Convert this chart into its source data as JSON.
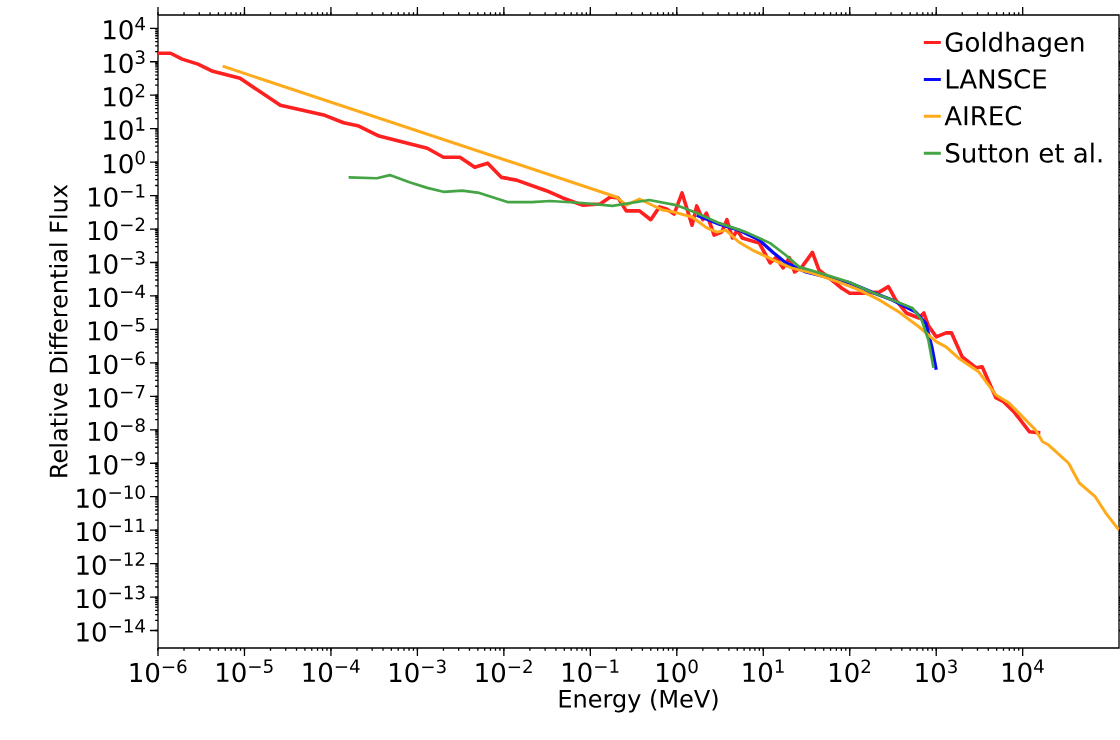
{
  "chart_data": {
    "type": "line",
    "xlabel": "Energy (MeV)",
    "ylabel": "Relative Differential Flux",
    "log": "xy",
    "legend": "top right",
    "xlim": [
      1e-06,
      130000
    ],
    "ylim": [
      3e-15,
      25000
    ],
    "xticks": [
      {
        "value": 1e-06,
        "label": "10$^{−6}$"
      },
      {
        "value": 1e-05,
        "label": "10$^{−5}$"
      },
      {
        "value": 0.0001,
        "label": "10$^{−4}$"
      },
      {
        "value": 0.001,
        "label": "10$^{−3}$"
      },
      {
        "value": 0.01,
        "label": "10$^{−2}$"
      },
      {
        "value": 0.1,
        "label": "10$^{−1}$"
      },
      {
        "value": 1,
        "label": "10$^{0}$"
      },
      {
        "value": 10,
        "label": "10$^{1}$"
      },
      {
        "value": 100,
        "label": "10$^{2}$"
      },
      {
        "value": 1000,
        "label": "10$^{3}$"
      },
      {
        "value": 10000,
        "label": "10$^{4}$"
      }
    ],
    "yticks": [
      {
        "value": 1e-14,
        "label": "10$^{−14}$"
      },
      {
        "value": 1e-13,
        "label": "10$^{−13}$"
      },
      {
        "value": 1e-12,
        "label": "10$^{−12}$"
      },
      {
        "value": 1e-11,
        "label": "10$^{−11}$"
      },
      {
        "value": 1e-10,
        "label": "10$^{−10}$"
      },
      {
        "value": 1e-09,
        "label": "10$^{−9}$"
      },
      {
        "value": 1e-08,
        "label": "10$^{−8}$"
      },
      {
        "value": 1e-07,
        "label": "10$^{−7}$"
      },
      {
        "value": 1e-06,
        "label": "10$^{−6}$"
      },
      {
        "value": 1e-05,
        "label": "10$^{−5}$"
      },
      {
        "value": 0.0001,
        "label": "10$^{−4}$"
      },
      {
        "value": 0.001,
        "label": "10$^{−3}$"
      },
      {
        "value": 0.01,
        "label": "10$^{−2}$"
      },
      {
        "value": 0.1,
        "label": "10$^{−1}$"
      },
      {
        "value": 1,
        "label": "10$^{0}$"
      },
      {
        "value": 10,
        "label": "10$^{1}$"
      },
      {
        "value": 100,
        "label": "10$^{2}$"
      },
      {
        "value": 1000,
        "label": "10$^{3}$"
      },
      {
        "value": 10000,
        "label": "10$^{4}$"
      }
    ],
    "series": [
      {
        "name": "Goldhagen",
        "color": "#ff2020",
        "x": [
          1e-06,
          1.4e-06,
          1.9e-06,
          2.9e-06,
          4.3e-06,
          8.9e-06,
          2.6e-05,
          8.5e-05,
          0.00014,
          0.00021,
          0.00036,
          0.0013,
          0.002,
          0.0031,
          0.0046,
          0.0065,
          0.0094,
          0.014,
          0.031,
          0.048,
          0.081,
          0.13,
          0.17,
          0.21,
          0.26,
          0.37,
          0.5,
          0.63,
          0.76,
          0.93,
          1.15,
          1.5,
          1.7,
          2.0,
          2.2,
          2.7,
          3.3,
          3.8,
          4.4,
          5.0,
          5.7,
          9.0,
          12,
          14,
          17,
          20,
          23,
          28,
          37,
          44,
          62,
          81,
          100,
          140,
          220,
          280,
          340,
          450,
          630,
          720,
          810,
          1000,
          1300,
          1500,
          2000,
          2900,
          3400,
          4900,
          6000,
          7900,
          12000,
          16000
        ],
        "values": [
          1800,
          1800,
          1200,
          850,
          520,
          320,
          50,
          25,
          15,
          12,
          6,
          2.6,
          1.4,
          1.4,
          0.7,
          0.93,
          0.35,
          0.29,
          0.14,
          0.085,
          0.052,
          0.056,
          0.091,
          0.085,
          0.035,
          0.035,
          0.019,
          0.046,
          0.04,
          0.028,
          0.12,
          0.013,
          0.049,
          0.019,
          0.03,
          0.0066,
          0.0081,
          0.019,
          0.0054,
          0.0093,
          0.0054,
          0.0038,
          0.00097,
          0.0014,
          0.00069,
          0.0014,
          0.00052,
          0.00074,
          0.002,
          0.0006,
          0.0003,
          0.00017,
          0.00012,
          0.00012,
          0.00013,
          0.00019,
          7.6e-05,
          3.1e-05,
          2.2e-05,
          3.1e-05,
          1.3e-05,
          6e-06,
          7.9e-06,
          7.9e-06,
          1.5e-06,
          7.1e-07,
          7.6e-07,
          9.1e-08,
          6.9e-08,
          3.5e-08,
          8.7e-09,
          8.1e-09
        ]
      },
      {
        "name": "LANSCE",
        "color": "#0a0aff",
        "x": [
          1.7,
          3.1,
          5.2,
          9.0,
          13,
          18,
          31,
          53,
          98,
          180,
          310,
          580,
          760,
          890,
          1000
        ],
        "values": [
          0.026,
          0.014,
          0.0093,
          0.0047,
          0.002,
          0.001,
          0.00052,
          0.00037,
          0.00025,
          0.00013,
          7.6e-05,
          3.3e-05,
          1.5e-05,
          3e-06,
          6.2e-07
        ]
      },
      {
        "name": "AIREC",
        "color": "#ffaa1a",
        "x": [
          5.6e-06,
          0.2,
          0.26,
          0.37,
          0.46,
          0.69,
          0.93,
          1.5,
          2.2,
          2.9,
          3.7,
          5.2,
          7.4,
          13,
          21,
          36,
          75,
          130,
          220,
          370,
          630,
          1000,
          1300,
          1800,
          3100,
          4900,
          6900,
          9000,
          14000,
          17000,
          20000,
          34000,
          45000,
          69000,
          91000,
          130000
        ],
        "values": [
          740,
          0.091,
          0.052,
          0.079,
          0.06,
          0.037,
          0.032,
          0.023,
          0.011,
          0.0081,
          0.0093,
          0.0041,
          0.0024,
          0.0012,
          0.00069,
          0.00049,
          0.00026,
          0.00015,
          7.6e-05,
          3.3e-05,
          1.2e-05,
          4.3e-06,
          3e-06,
          1.4e-06,
          5.4e-07,
          1.1e-07,
          6.4e-08,
          3.2e-08,
          1e-08,
          4.4e-09,
          3.5e-09,
          1e-09,
          2.6e-10,
          1e-10,
          3.3e-11,
          1e-11
        ]
      },
      {
        "name": "Sutton et al.",
        "color": "#45a545",
        "x": [
          0.00016,
          0.00034,
          0.00048,
          0.00081,
          0.0013,
          0.002,
          0.0033,
          0.0052,
          0.011,
          0.021,
          0.034,
          0.081,
          0.18,
          0.48,
          0.98,
          1.7,
          3.1,
          6.3,
          12,
          18,
          26,
          53,
          98,
          180,
          310,
          530,
          680,
          810,
          930
        ],
        "values": [
          0.35,
          0.33,
          0.41,
          0.25,
          0.17,
          0.13,
          0.14,
          0.12,
          0.064,
          0.064,
          0.069,
          0.06,
          0.049,
          0.074,
          0.052,
          0.03,
          0.015,
          0.0081,
          0.0038,
          0.0017,
          0.00074,
          0.00043,
          0.00026,
          0.00013,
          7.6e-05,
          4.4e-05,
          1.9e-05,
          4.9e-06,
          7.1e-07
        ]
      }
    ]
  }
}
